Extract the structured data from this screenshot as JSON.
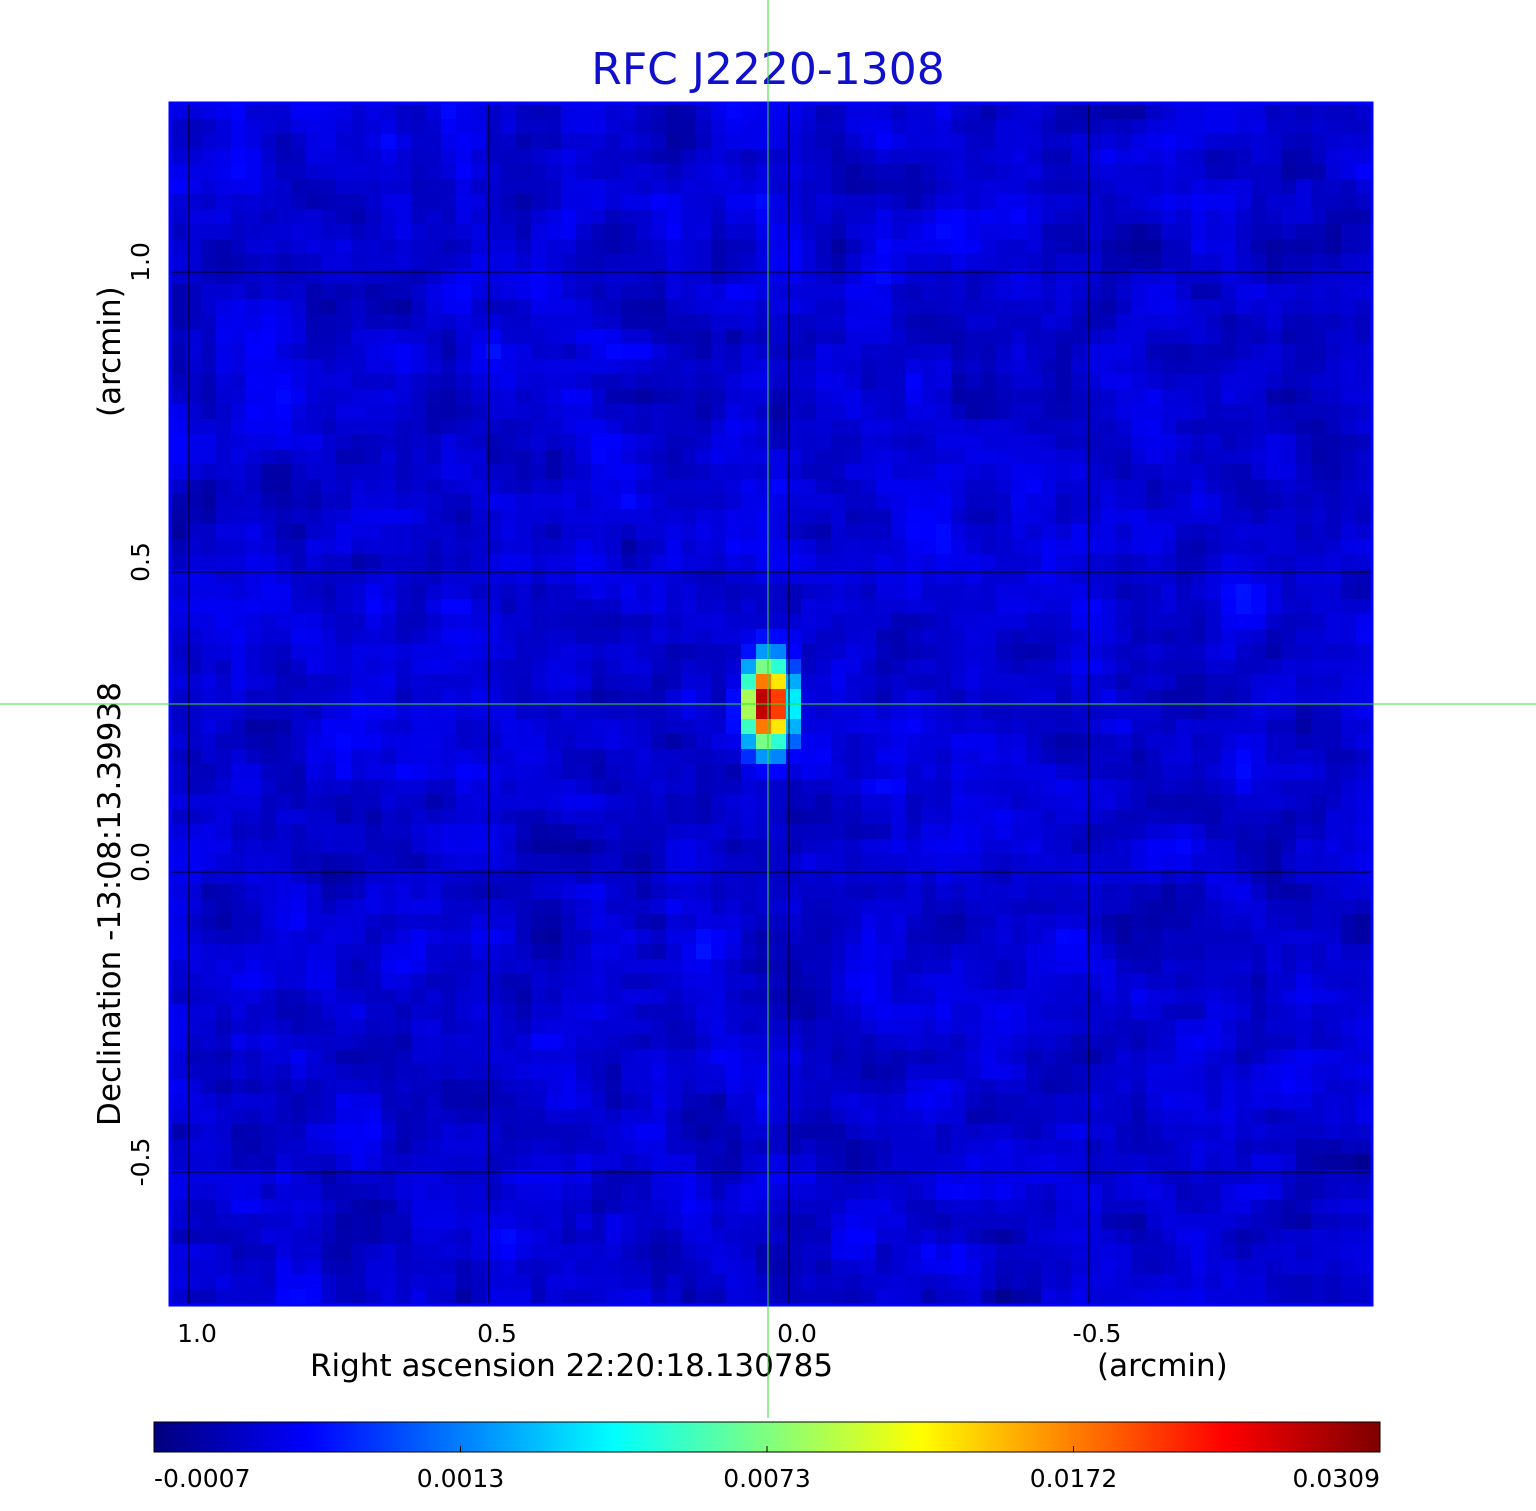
{
  "chart_data": {
    "type": "heatmap",
    "title": "RFC J2220-1308",
    "xlabel": "Right ascension  22:20:18.130785",
    "xlabel_unit": "(arcmin)",
    "ylabel": "Declination  -13:08:13.39938",
    "ylabel_unit": "(arcmin)",
    "x_ticks": [
      "1.0",
      "0.5",
      "0.0",
      "-0.5"
    ],
    "x_tick_values": [
      1.0,
      0.5,
      0.0,
      -0.5
    ],
    "y_ticks": [
      "1.0",
      "0.5",
      "0.0",
      "-0.5"
    ],
    "y_tick_values": [
      1.0,
      0.5,
      0.0,
      -0.5
    ],
    "xlim": [
      1.03,
      -0.97
    ],
    "ylim": [
      -0.72,
      1.28
    ],
    "x_reversed": true,
    "grid": true,
    "crosshair": {
      "x": 0.035,
      "y": 0.28,
      "color": "#33dd33"
    },
    "peak": {
      "x": 0.035,
      "y": 0.28,
      "value": 0.0309
    },
    "colorbar": {
      "colormap": "jet",
      "labels": [
        "-0.0007",
        "0.0013",
        "0.0073",
        "0.0172",
        "0.0309"
      ],
      "values": [
        -0.0007,
        0.0013,
        0.0073,
        0.0172,
        0.0309
      ],
      "min": -0.0007,
      "max": 0.0309
    },
    "colors": {
      "title": "#1010cc",
      "frame": "#0000ff",
      "grid": "#000000",
      "crosshair": "#33dd33"
    }
  }
}
